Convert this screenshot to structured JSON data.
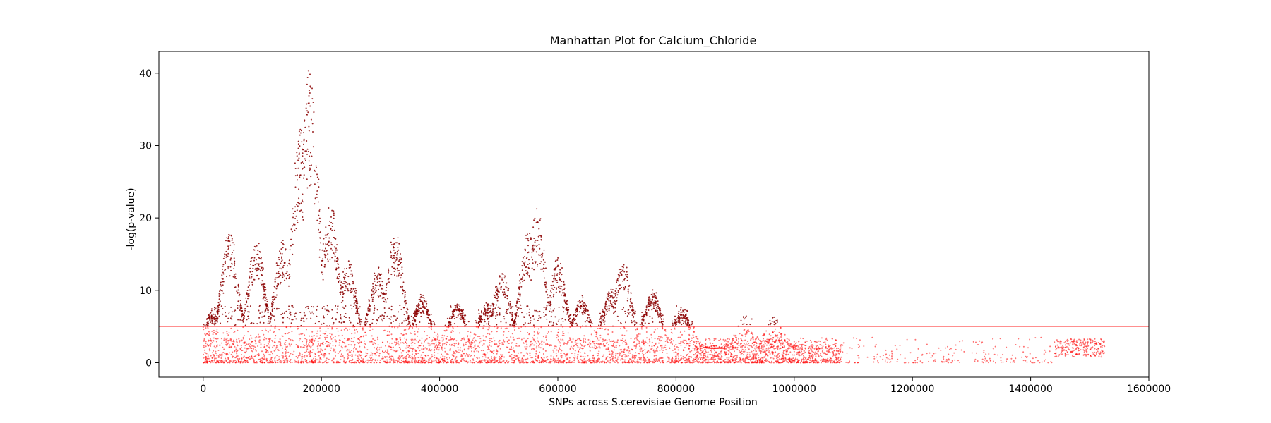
{
  "chart_data": {
    "type": "scatter",
    "title": "Manhattan Plot for Calcium_Chloride",
    "xlabel": "SNPs across S.cerevisiae Genome Position",
    "ylabel": "-log(p-value)",
    "xlim": [
      -75000,
      1600000
    ],
    "ylim": [
      -2,
      43
    ],
    "x_ticks": [
      0,
      200000,
      400000,
      600000,
      800000,
      1000000,
      1200000,
      1400000,
      1600000
    ],
    "x_tick_labels": [
      "0",
      "200000",
      "400000",
      "600000",
      "800000",
      "1000000",
      "1200000",
      "1400000",
      "1600000"
    ],
    "y_ticks": [
      0,
      10,
      20,
      30,
      40
    ],
    "y_tick_labels": [
      "0",
      "10",
      "20",
      "30",
      "40"
    ],
    "threshold": 5,
    "grid": false,
    "colors": {
      "points": "#ff0000",
      "significant_points": "#8b0000",
      "threshold_line": "#ff0000"
    },
    "x_range_covered": [
      0,
      1525000
    ],
    "peaks": [
      {
        "x": 15000,
        "y": 6.5
      },
      {
        "x": 45000,
        "y": 18
      },
      {
        "x": 90000,
        "y": 17
      },
      {
        "x": 135000,
        "y": 17
      },
      {
        "x": 165000,
        "y": 33
      },
      {
        "x": 180000,
        "y": 40.5
      },
      {
        "x": 215000,
        "y": 22
      },
      {
        "x": 245000,
        "y": 14
      },
      {
        "x": 295000,
        "y": 13
      },
      {
        "x": 325000,
        "y": 18
      },
      {
        "x": 370000,
        "y": 9
      },
      {
        "x": 430000,
        "y": 8
      },
      {
        "x": 480000,
        "y": 8
      },
      {
        "x": 505000,
        "y": 13
      },
      {
        "x": 550000,
        "y": 18
      },
      {
        "x": 565000,
        "y": 21
      },
      {
        "x": 600000,
        "y": 14
      },
      {
        "x": 640000,
        "y": 9
      },
      {
        "x": 690000,
        "y": 10
      },
      {
        "x": 710000,
        "y": 14
      },
      {
        "x": 760000,
        "y": 10
      },
      {
        "x": 810000,
        "y": 7
      },
      {
        "x": 920000,
        "y": 5
      },
      {
        "x": 965000,
        "y": 4.5
      },
      {
        "x": 1460000,
        "y": 2.5
      },
      {
        "x": 1500000,
        "y": 3
      }
    ]
  }
}
